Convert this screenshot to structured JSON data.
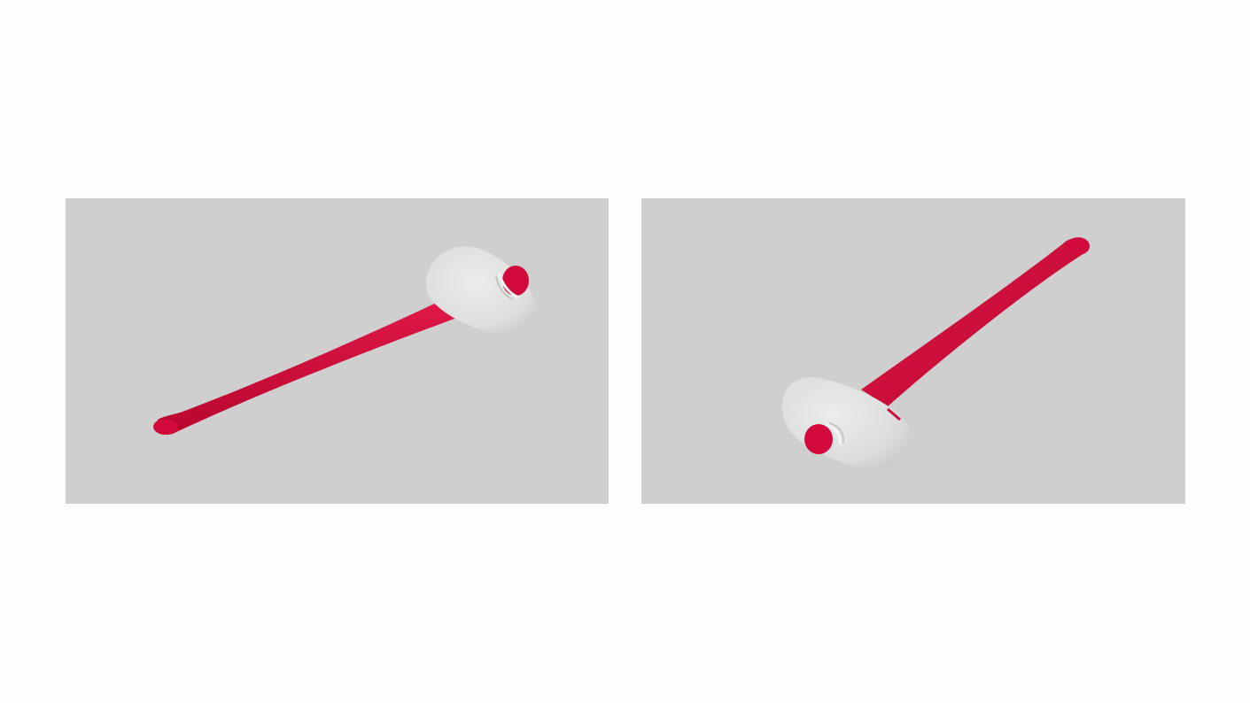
{
  "scene": {
    "views": [
      {
        "id": "view-left",
        "subject": "mallet",
        "handle_color": "#d10a3b",
        "head_color": "#e2e2e2"
      },
      {
        "id": "view-right",
        "subject": "mallet",
        "handle_color": "#d10a3b",
        "head_color": "#e2e2e2"
      }
    ],
    "background_color": "#cfcfcf",
    "page_color": "#fdfdfd"
  }
}
